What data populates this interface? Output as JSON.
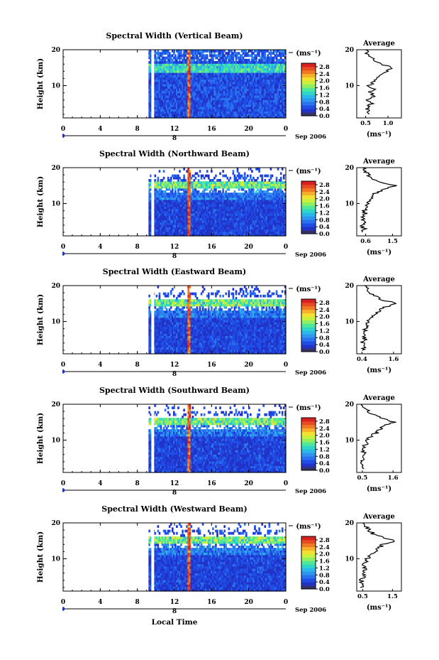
{
  "figure": {
    "xlabel": "Local Time",
    "date_label": "Sep 2006",
    "day_marker": "8",
    "colorbar_unit": "(ms⁻¹)",
    "average_title": "Average",
    "ylabel": "Height (km)",
    "colors": {
      "colormap": [
        "#3a2a8c",
        "#2233c8",
        "#1f4ee6",
        "#2a72f0",
        "#2f95ef",
        "#2ab8e8",
        "#2fd6c8",
        "#4fe89a",
        "#8ef060",
        "#c9f03c",
        "#f4e030",
        "#f6b02a",
        "#f07a24",
        "#e84a22",
        "#d82020"
      ],
      "line": "#000000"
    }
  },
  "chart_data": [
    {
      "type": "heatmap",
      "title": "Spectral Width (Vertical Beam)",
      "xlabel": "Local Time",
      "ylabel": "Height (km)",
      "xlim": [
        0,
        24
      ],
      "xticks": [
        "0",
        "4",
        "8",
        "12",
        "16",
        "20",
        "0"
      ],
      "ylim": [
        1,
        20
      ],
      "yticks": [
        "10",
        "20"
      ],
      "data_start_hour": 9.2,
      "colorbar": {
        "unit": "(ms⁻¹)",
        "ticks": [
          "0.0",
          "0.4",
          "0.8",
          "1.2",
          "1.6",
          "2.0",
          "2.4",
          "2.8"
        ],
        "range": [
          0,
          3.0
        ]
      },
      "average": {
        "title": "Average",
        "xlabel": "(ms⁻¹)",
        "xticks": [
          "0.5",
          "1.0"
        ],
        "xlim": [
          0.3,
          1.3
        ],
        "profile": [
          [
            2,
            0.55
          ],
          [
            3,
            0.6
          ],
          [
            4,
            0.5
          ],
          [
            5,
            0.62
          ],
          [
            6,
            0.55
          ],
          [
            7,
            0.72
          ],
          [
            8,
            0.6
          ],
          [
            9,
            0.66
          ],
          [
            10,
            0.58
          ],
          [
            11,
            0.7
          ],
          [
            12,
            0.75
          ],
          [
            13,
            0.85
          ],
          [
            14,
            0.95
          ],
          [
            15,
            1.1
          ],
          [
            16,
            0.85
          ],
          [
            17,
            0.72
          ],
          [
            18,
            0.65
          ],
          [
            19,
            0.55
          ],
          [
            20,
            0.5
          ]
        ]
      }
    },
    {
      "type": "heatmap",
      "title": "Spectral Width (Northward Beam)",
      "xlabel": "Local Time",
      "ylabel": "Height (km)",
      "xlim": [
        0,
        24
      ],
      "xticks": [
        "0",
        "4",
        "8",
        "12",
        "16",
        "20",
        "0"
      ],
      "ylim": [
        1,
        20
      ],
      "yticks": [
        "10",
        "20"
      ],
      "data_start_hour": 9.2,
      "colorbar": {
        "unit": "(ms⁻¹)",
        "ticks": [
          "0.0",
          "0.4",
          "0.8",
          "1.2",
          "1.6",
          "2.0",
          "2.4",
          "2.8"
        ],
        "range": [
          0,
          3.0
        ]
      },
      "average": {
        "title": "Average",
        "xlabel": "(ms⁻¹)",
        "xticks": [
          "0.6",
          "1.5"
        ],
        "xlim": [
          0.3,
          1.8
        ],
        "profile": [
          [
            2,
            0.5
          ],
          [
            3,
            0.55
          ],
          [
            4,
            0.45
          ],
          [
            5,
            0.55
          ],
          [
            6,
            0.5
          ],
          [
            7,
            0.6
          ],
          [
            8,
            0.55
          ],
          [
            9,
            0.6
          ],
          [
            10,
            0.65
          ],
          [
            11,
            0.7
          ],
          [
            12,
            0.8
          ],
          [
            13,
            0.95
          ],
          [
            14,
            1.2
          ],
          [
            15,
            1.6
          ],
          [
            16,
            1.1
          ],
          [
            17,
            0.8
          ],
          [
            18,
            0.7
          ],
          [
            19,
            0.6
          ],
          [
            20,
            0.5
          ]
        ]
      }
    },
    {
      "type": "heatmap",
      "title": "Spectral Width (Eastward Beam)",
      "xlabel": "Local Time",
      "ylabel": "Height (km)",
      "xlim": [
        0,
        24
      ],
      "xticks": [
        "0",
        "4",
        "8",
        "12",
        "16",
        "20",
        "0"
      ],
      "ylim": [
        1,
        20
      ],
      "yticks": [
        "10",
        "20"
      ],
      "data_start_hour": 9.2,
      "colorbar": {
        "unit": "(ms⁻¹)",
        "ticks": [
          "0.0",
          "0.4",
          "0.8",
          "1.2",
          "1.6",
          "2.0",
          "2.4",
          "2.8"
        ],
        "range": [
          0,
          3.0
        ]
      },
      "average": {
        "title": "Average",
        "xlabel": "(ms⁻¹)",
        "xticks": [
          "0.4",
          "1.6"
        ],
        "xlim": [
          0.2,
          1.9
        ],
        "profile": [
          [
            2,
            0.45
          ],
          [
            3,
            0.5
          ],
          [
            4,
            0.42
          ],
          [
            5,
            0.5
          ],
          [
            6,
            0.48
          ],
          [
            7,
            0.55
          ],
          [
            8,
            0.52
          ],
          [
            9,
            0.6
          ],
          [
            10,
            0.65
          ],
          [
            11,
            0.75
          ],
          [
            12,
            0.9
          ],
          [
            13,
            1.05
          ],
          [
            14,
            1.3
          ],
          [
            15,
            1.75
          ],
          [
            16,
            1.2
          ],
          [
            17,
            0.9
          ],
          [
            18,
            0.75
          ],
          [
            19,
            0.6
          ],
          [
            20,
            0.5
          ]
        ]
      }
    },
    {
      "type": "heatmap",
      "title": "Spectral Width (Southward Beam)",
      "xlabel": "Local Time",
      "ylabel": "Height (km)",
      "xlim": [
        0,
        24
      ],
      "xticks": [
        "0",
        "4",
        "8",
        "12",
        "16",
        "20",
        "0"
      ],
      "ylim": [
        1,
        20
      ],
      "yticks": [
        "10",
        "20"
      ],
      "data_start_hour": 9.2,
      "colorbar": {
        "unit": "(ms⁻¹)",
        "ticks": [
          "0.0",
          "0.4",
          "0.8",
          "1.2",
          "1.6",
          "2.0",
          "2.4",
          "2.8"
        ],
        "range": [
          0,
          3.0
        ]
      },
      "average": {
        "title": "Average",
        "xlabel": "(ms⁻¹)",
        "xticks": [
          "0.5",
          "1.6"
        ],
        "xlim": [
          0.3,
          1.9
        ],
        "profile": [
          [
            2,
            0.48
          ],
          [
            3,
            0.52
          ],
          [
            4,
            0.45
          ],
          [
            5,
            0.52
          ],
          [
            6,
            0.5
          ],
          [
            7,
            0.58
          ],
          [
            8,
            0.55
          ],
          [
            9,
            0.62
          ],
          [
            10,
            0.7
          ],
          [
            11,
            0.8
          ],
          [
            12,
            1.0
          ],
          [
            13,
            1.1
          ],
          [
            14,
            1.25
          ],
          [
            15,
            1.7
          ],
          [
            16,
            1.2
          ],
          [
            17,
            0.9
          ],
          [
            18,
            0.75
          ],
          [
            19,
            0.62
          ],
          [
            20,
            0.5
          ]
        ]
      }
    },
    {
      "type": "heatmap",
      "title": "Spectral Width (Westward Beam)",
      "xlabel": "Local Time",
      "ylabel": "Height (km)",
      "xlim": [
        0,
        24
      ],
      "xticks": [
        "0",
        "4",
        "8",
        "12",
        "16",
        "20",
        "0"
      ],
      "ylim": [
        1,
        20
      ],
      "yticks": [
        "10",
        "20"
      ],
      "data_start_hour": 9.2,
      "colorbar": {
        "unit": "(ms⁻¹)",
        "ticks": [
          "0.0",
          "0.4",
          "0.8",
          "1.2",
          "1.6",
          "2.0",
          "2.4",
          "2.8"
        ],
        "range": [
          0,
          3.0
        ]
      },
      "average": {
        "title": "Average",
        "xlabel": "(ms⁻¹)",
        "xticks": [
          "0.5",
          "1.5"
        ],
        "xlim": [
          0.3,
          1.8
        ],
        "profile": [
          [
            2,
            0.48
          ],
          [
            3,
            0.5
          ],
          [
            4,
            0.45
          ],
          [
            5,
            0.52
          ],
          [
            6,
            0.5
          ],
          [
            7,
            0.56
          ],
          [
            8,
            0.54
          ],
          [
            9,
            0.6
          ],
          [
            10,
            0.65
          ],
          [
            11,
            0.75
          ],
          [
            12,
            0.9
          ],
          [
            13,
            1.05
          ],
          [
            14,
            1.2
          ],
          [
            15,
            1.6
          ],
          [
            16,
            1.15
          ],
          [
            17,
            0.85
          ],
          [
            18,
            0.7
          ],
          [
            19,
            0.6
          ],
          [
            20,
            0.5
          ]
        ]
      }
    }
  ]
}
